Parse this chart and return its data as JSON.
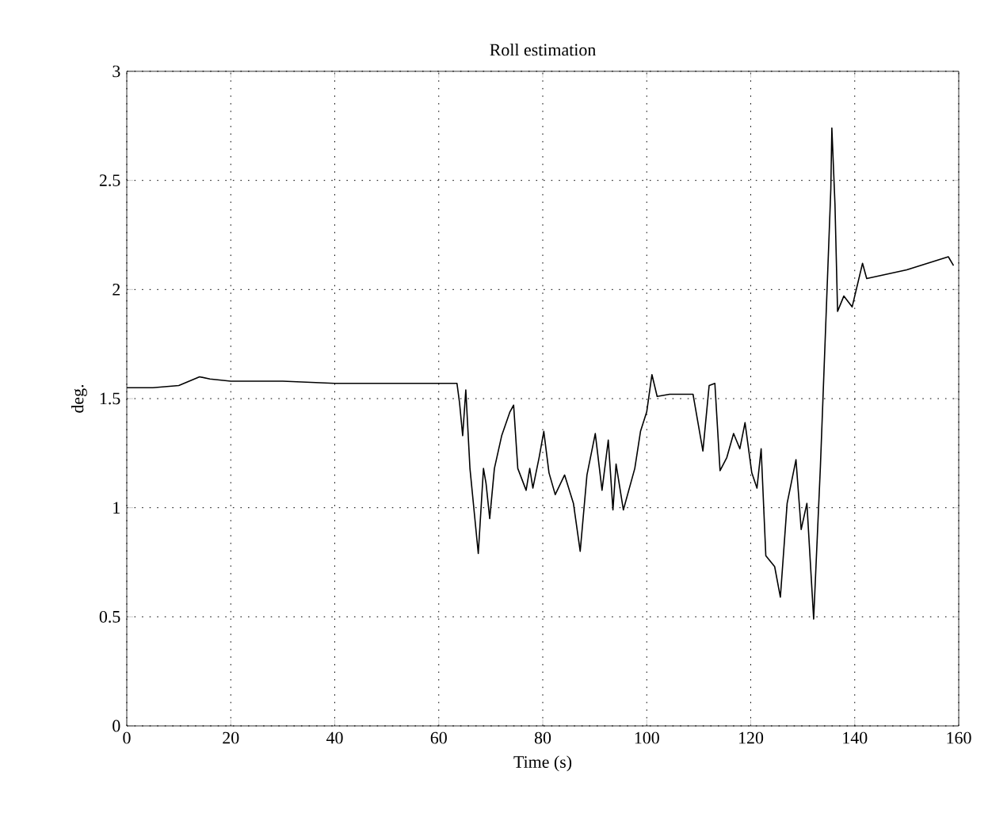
{
  "chart_data": {
    "type": "line",
    "title": "Roll estimation",
    "xlabel": "Time (s)",
    "ylabel": "deg.",
    "xlim": [
      0,
      160
    ],
    "ylim": [
      0,
      3
    ],
    "xticks": [
      0,
      20,
      40,
      60,
      80,
      100,
      120,
      140,
      160
    ],
    "yticks": [
      0,
      0.5,
      1,
      1.5,
      2,
      2.5,
      3
    ],
    "grid": true,
    "line_style": "solid",
    "marker": "none",
    "series": [
      {
        "color": "#000000",
        "x": [
          0,
          5,
          10,
          12,
          14,
          16,
          20,
          30,
          40,
          50,
          60,
          63.5,
          64.0,
          64.6,
          65.2,
          66.0,
          67.6,
          68.6,
          69.1,
          69.8,
          70.7,
          72.1,
          73.7,
          74.4,
          75.2,
          76.8,
          77.5,
          78.1,
          79.3,
          80.2,
          81.2,
          82.4,
          84.2,
          85.9,
          87.2,
          88.5,
          90.1,
          91.4,
          92.6,
          93.5,
          94.1,
          95.5,
          97.7,
          98.8,
          100.0,
          101.0,
          102.0,
          104.4,
          108.9,
          110.8,
          112.0,
          113.1,
          114.1,
          115.4,
          116.7,
          117.9,
          118.9,
          120.2,
          121.2,
          122.0,
          122.9,
          124.6,
          125.7,
          127.0,
          128.7,
          129.7,
          130.8,
          132.1,
          133.4,
          134.6,
          135.4,
          135.6,
          136.2,
          136.7,
          137.9,
          139.5,
          141.5,
          142.3,
          150,
          158,
          159
        ],
        "values": [
          1.55,
          1.55,
          1.56,
          1.58,
          1.6,
          1.59,
          1.58,
          1.58,
          1.57,
          1.57,
          1.57,
          1.57,
          1.48,
          1.33,
          1.54,
          1.18,
          0.79,
          1.18,
          1.11,
          0.95,
          1.18,
          1.33,
          1.44,
          1.47,
          1.18,
          1.08,
          1.18,
          1.09,
          1.23,
          1.35,
          1.16,
          1.06,
          1.15,
          1.02,
          0.8,
          1.15,
          1.34,
          1.08,
          1.31,
          0.99,
          1.2,
          0.99,
          1.18,
          1.35,
          1.44,
          1.61,
          1.51,
          1.52,
          1.52,
          1.26,
          1.56,
          1.57,
          1.17,
          1.23,
          1.34,
          1.27,
          1.39,
          1.16,
          1.09,
          1.27,
          0.78,
          0.73,
          0.59,
          1.02,
          1.22,
          0.9,
          1.02,
          0.49,
          1.19,
          1.95,
          2.46,
          2.74,
          2.39,
          1.9,
          1.97,
          1.92,
          2.12,
          2.05,
          2.09,
          2.15,
          2.11
        ]
      }
    ]
  }
}
